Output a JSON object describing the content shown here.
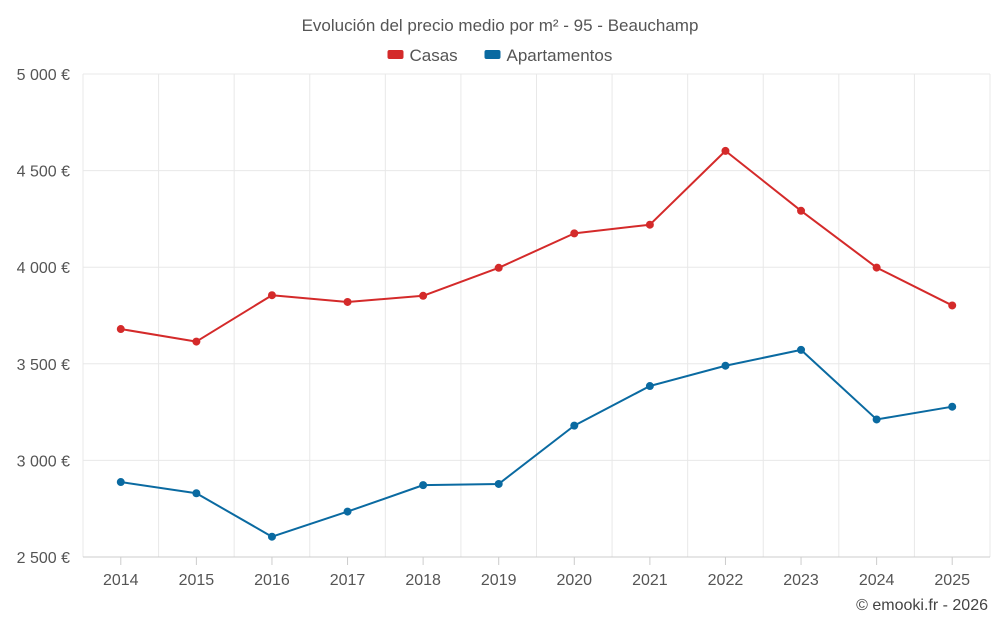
{
  "chart_data": {
    "type": "line",
    "title": "Evolución del precio medio por m² - 95 - Beauchamp",
    "categories": [
      "2014",
      "2015",
      "2016",
      "2017",
      "2018",
      "2019",
      "2020",
      "2021",
      "2022",
      "2023",
      "2024",
      "2025"
    ],
    "series": [
      {
        "name": "Casas",
        "color": "#d42a2a",
        "values": [
          3680,
          3615,
          3855,
          3820,
          3852,
          3997,
          4175,
          4220,
          4602,
          4292,
          3998,
          3802
        ]
      },
      {
        "name": "Apartamentos",
        "color": "#0a6aa1",
        "values": [
          2888,
          2830,
          2605,
          2735,
          2872,
          2878,
          3180,
          3385,
          3490,
          3572,
          3212,
          3278
        ]
      }
    ],
    "ylim": [
      2500,
      5000
    ],
    "yticks": [
      2500,
      3000,
      3500,
      4000,
      4500,
      5000
    ],
    "ytick_labels": [
      "2 500 €",
      "3 000 €",
      "3 500 €",
      "4 000 €",
      "4 500 €",
      "5 000 €"
    ],
    "xlabel": "",
    "ylabel": "",
    "grid": true,
    "legend_position": "top-center"
  },
  "credit": "© emooki.fr - 2026"
}
